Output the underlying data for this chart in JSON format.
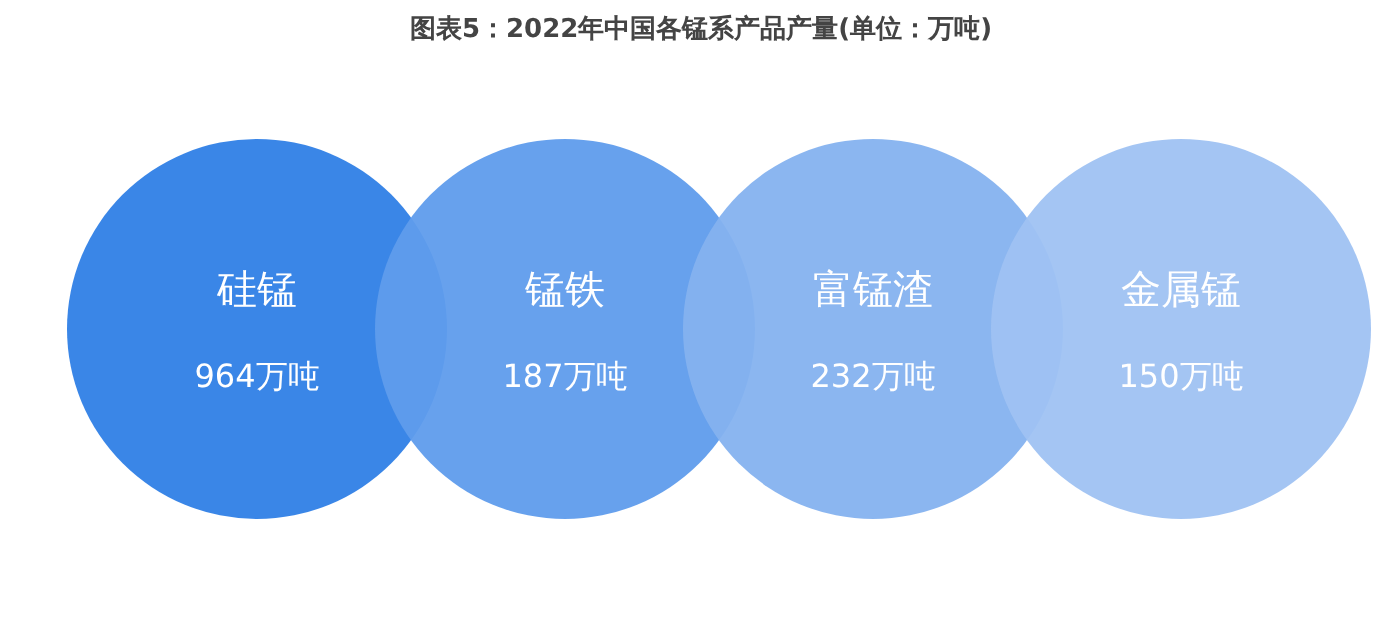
{
  "chart_data": {
    "type": "other",
    "title": "图表5：2022年中国各锰系产品产量(单位：万吨)",
    "categories": [
      "硅锰",
      "锰铁",
      "富锰渣",
      "金属锰"
    ],
    "values": [
      964,
      187,
      232,
      150
    ],
    "value_labels": [
      "964万吨",
      "187万吨",
      "232万吨",
      "150万吨"
    ],
    "colors": [
      "#2f7fe6",
      "#5f9cec",
      "#85b2ef",
      "#9fc2f2"
    ]
  }
}
